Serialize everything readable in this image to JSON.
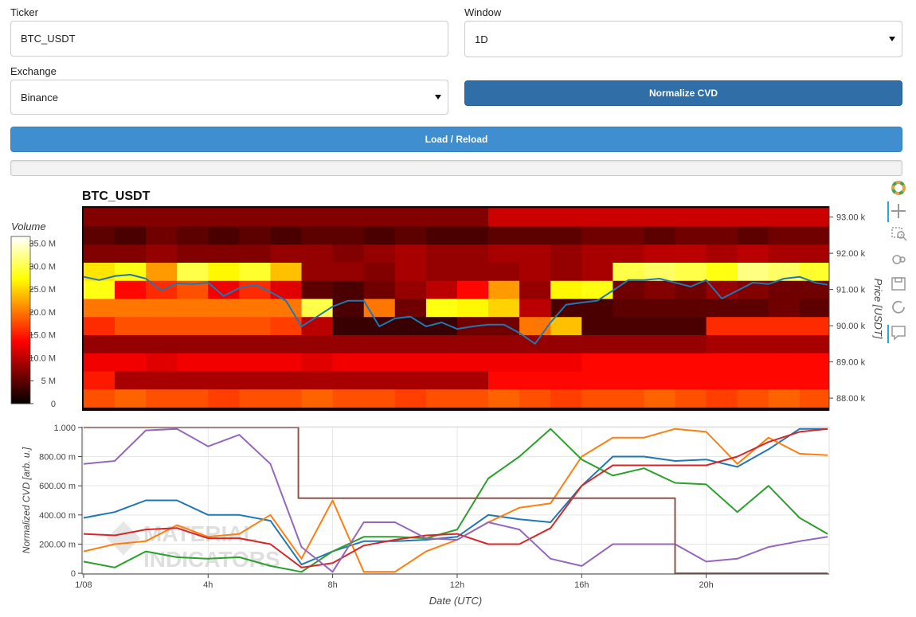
{
  "form": {
    "ticker": {
      "label": "Ticker",
      "value": "BTC_USDT"
    },
    "window": {
      "label": "Window",
      "value": "1D"
    },
    "exchange": {
      "label": "Exchange",
      "value": "Binance"
    },
    "normalize_button": "Normalize CVD",
    "load_button": "Load / Reload"
  },
  "chart_data": [
    {
      "type": "heatmap",
      "title": "BTC_USDT",
      "colormap": "hot",
      "xlim": [
        -0.05,
        23.95
      ],
      "x_bins": [
        0,
        1,
        2,
        3,
        4,
        5,
        6,
        7,
        8,
        9,
        10,
        11,
        12,
        13,
        14,
        15,
        16,
        17,
        18,
        19,
        20,
        21,
        22,
        23,
        24
      ],
      "y_bins": [
        87750,
        88250,
        88750,
        89250,
        89750,
        90250,
        90750,
        91250,
        91750,
        92250,
        92750,
        93250
      ],
      "z": [
        [
          18,
          19,
          18,
          18,
          17,
          18,
          18,
          19,
          18,
          18,
          17,
          18,
          18,
          19,
          18,
          17,
          18,
          18,
          19,
          18,
          17,
          18,
          19,
          18
        ],
        [
          15,
          9,
          9,
          9,
          9,
          9,
          9,
          9,
          9,
          9,
          9,
          9,
          9,
          14,
          14,
          14,
          14,
          14,
          14,
          14,
          14,
          14,
          14,
          14
        ],
        [
          13,
          13,
          12,
          13,
          13,
          13,
          13,
          12,
          13,
          13,
          13,
          13,
          13,
          13,
          13,
          13,
          14,
          14,
          14,
          14,
          14,
          14,
          14,
          14
        ],
        [
          8,
          8,
          8,
          8,
          8,
          8,
          8,
          8,
          8,
          8,
          8,
          8,
          8,
          8,
          8,
          8,
          8,
          8,
          8,
          8,
          9,
          9,
          9,
          9
        ],
        [
          16,
          18,
          18,
          18,
          18,
          18,
          17,
          10,
          3,
          3,
          3,
          3,
          6,
          6,
          20,
          24,
          4,
          4,
          4,
          4,
          16,
          16,
          16,
          16
        ],
        [
          20,
          20,
          20,
          20,
          20,
          20,
          20,
          30,
          4,
          20,
          6,
          28,
          27,
          25,
          10,
          4,
          4,
          5,
          5,
          5,
          5,
          5,
          6,
          5
        ],
        [
          28,
          14,
          16,
          18,
          13,
          16,
          12,
          5,
          4,
          6,
          8,
          10,
          14,
          22,
          8,
          27,
          28,
          6,
          7,
          6,
          8,
          7,
          6,
          6
        ],
        [
          26,
          28,
          22,
          30,
          27,
          29,
          24,
          8,
          8,
          7,
          9,
          8,
          8,
          8,
          9,
          8,
          9,
          30,
          31,
          30,
          28,
          32,
          31,
          29
        ],
        [
          7,
          7,
          8,
          7,
          7,
          7,
          8,
          8,
          7,
          8,
          9,
          8,
          8,
          9,
          9,
          8,
          9,
          9,
          10,
          10,
          9,
          10,
          9,
          9
        ],
        [
          5,
          4,
          6,
          5,
          4,
          5,
          4,
          5,
          5,
          4,
          5,
          4,
          4,
          5,
          5,
          5,
          6,
          6,
          5,
          6,
          6,
          5,
          6,
          6
        ],
        [
          7,
          7,
          7,
          7,
          7,
          7,
          7,
          7,
          7,
          7,
          7,
          7,
          7,
          11,
          11,
          11,
          11,
          11,
          11,
          11,
          11,
          11,
          11,
          11
        ]
      ],
      "zlabel": "Volume",
      "zlim": [
        0,
        36.5
      ],
      "zticks": [
        0,
        {
          "value": 5,
          "label": "5 M"
        },
        {
          "value": 10,
          "label": "10.0 M"
        },
        {
          "value": 15,
          "label": "15.0 M"
        },
        {
          "value": 20,
          "label": "20.0 M"
        },
        {
          "value": 25,
          "label": "25.0 M"
        },
        {
          "value": 30,
          "label": "30.0 M"
        },
        {
          "value": 35,
          "label": "35.0 M"
        }
      ],
      "y2label": "Price [USDT]",
      "y2lim": [
        87650,
        93300
      ],
      "y2ticks": [
        {
          "value": 88000,
          "label": "88.00 k"
        },
        {
          "value": 89000,
          "label": "89.00 k"
        },
        {
          "value": 90000,
          "label": "90.00 k"
        },
        {
          "value": 91000,
          "label": "91.00 k"
        },
        {
          "value": 92000,
          "label": "92.00 k"
        },
        {
          "value": 93000,
          "label": "93.00 k"
        }
      ],
      "series": [
        {
          "color": "#1f77b4",
          "axis": "y2",
          "x": [
            0,
            0.5,
            1,
            1.5,
            2,
            2.5,
            3,
            3.5,
            4,
            4.5,
            5,
            5.5,
            6,
            6.5,
            7,
            7.5,
            8,
            8.5,
            9,
            9.5,
            10,
            10.5,
            11,
            11.5,
            12,
            12.5,
            13,
            13.5,
            14,
            14.5,
            15,
            15.5,
            16,
            16.5,
            17,
            17.5,
            18,
            18.5,
            19,
            19.5,
            20,
            20.5,
            21,
            21.5,
            22,
            22.5,
            23,
            23.5,
            23.9
          ],
          "values": [
            91350,
            91260,
            91370,
            91410,
            91300,
            90970,
            91170,
            91150,
            91190,
            90820,
            91040,
            91130,
            90930,
            90690,
            89980,
            90250,
            90530,
            90690,
            90690,
            89980,
            90200,
            90250,
            89980,
            90090,
            89910,
            89980,
            90030,
            90030,
            89800,
            89500,
            90090,
            90580,
            90640,
            90690,
            90970,
            91260,
            91260,
            91300,
            91190,
            91080,
            91260,
            90750,
            90970,
            91190,
            91150,
            91300,
            91350,
            91190,
            91130
          ]
        }
      ]
    },
    {
      "type": "line",
      "xlabel": "Date (UTC)",
      "ylabel": "Normalized CVD [arb. u.]",
      "watermark": [
        "MATERIAL",
        "INDICATORS"
      ],
      "xlim": [
        -0.05,
        23.95
      ],
      "ylim": [
        -0.005,
        1.005
      ],
      "grid": true,
      "xticks": [
        {
          "value": 0,
          "label": "1/08"
        },
        {
          "value": 4,
          "label": "4h"
        },
        {
          "value": 8,
          "label": "8h"
        },
        {
          "value": 12,
          "label": "12h"
        },
        {
          "value": 16,
          "label": "16h"
        },
        {
          "value": 20,
          "label": "20h"
        }
      ],
      "yticks": [
        0,
        {
          "value": 0.2,
          "label": "200.00 m"
        },
        {
          "value": 0.4,
          "label": "400.00 m"
        },
        {
          "value": 0.6,
          "label": "600.00 m"
        },
        {
          "value": 0.8,
          "label": "800.00 m"
        },
        {
          "value": 1,
          "label": "1.000"
        }
      ],
      "x": [
        0,
        1,
        2,
        3,
        4,
        5,
        6,
        7,
        8,
        9,
        10,
        11,
        12,
        13,
        14,
        15,
        16,
        17,
        18,
        19,
        20,
        21,
        22,
        23,
        23.9
      ],
      "series": [
        {
          "color": "#1f77b4",
          "values": [
            0.38,
            0.42,
            0.5,
            0.5,
            0.4,
            0.4,
            0.36,
            0.06,
            0.15,
            0.22,
            0.22,
            0.23,
            0.25,
            0.4,
            0.37,
            0.35,
            0.6,
            0.8,
            0.8,
            0.77,
            0.78,
            0.73,
            0.85,
            0.99,
            0.99
          ]
        },
        {
          "color": "#ff7f0e",
          "values": [
            0.15,
            0.2,
            0.22,
            0.33,
            0.25,
            0.27,
            0.4,
            0.1,
            0.5,
            0.01,
            0.01,
            0.15,
            0.23,
            0.35,
            0.45,
            0.48,
            0.8,
            0.93,
            0.93,
            0.99,
            0.97,
            0.75,
            0.93,
            0.82,
            0.81
          ]
        },
        {
          "color": "#2ca02c",
          "values": [
            0.08,
            0.04,
            0.15,
            0.11,
            0.1,
            0.11,
            0.05,
            0.01,
            0.15,
            0.25,
            0.25,
            0.24,
            0.3,
            0.65,
            0.8,
            0.99,
            0.78,
            0.67,
            0.72,
            0.62,
            0.61,
            0.42,
            0.6,
            0.38,
            0.27
          ]
        },
        {
          "color": "#d62728",
          "values": [
            0.27,
            0.26,
            0.3,
            0.31,
            0.24,
            0.24,
            0.2,
            0.04,
            0.07,
            0.19,
            0.23,
            0.26,
            0.27,
            0.2,
            0.2,
            0.31,
            0.6,
            0.74,
            0.74,
            0.74,
            0.74,
            0.8,
            0.9,
            0.97,
            0.99
          ]
        },
        {
          "color": "#9467bd",
          "values": [
            0.75,
            0.77,
            0.98,
            0.99,
            0.87,
            0.95,
            0.75,
            0.18,
            0.01,
            0.35,
            0.35,
            0.24,
            0.23,
            0.35,
            0.3,
            0.1,
            0.05,
            0.2,
            0.2,
            0.2,
            0.08,
            0.1,
            0.18,
            0.22,
            0.25
          ]
        },
        {
          "color": "#8c564b",
          "x": [
            0,
            6.9,
            6.9,
            19,
            19,
            23.9
          ],
          "values": [
            1,
            1,
            0.515,
            0.515,
            0,
            0
          ]
        }
      ]
    }
  ]
}
